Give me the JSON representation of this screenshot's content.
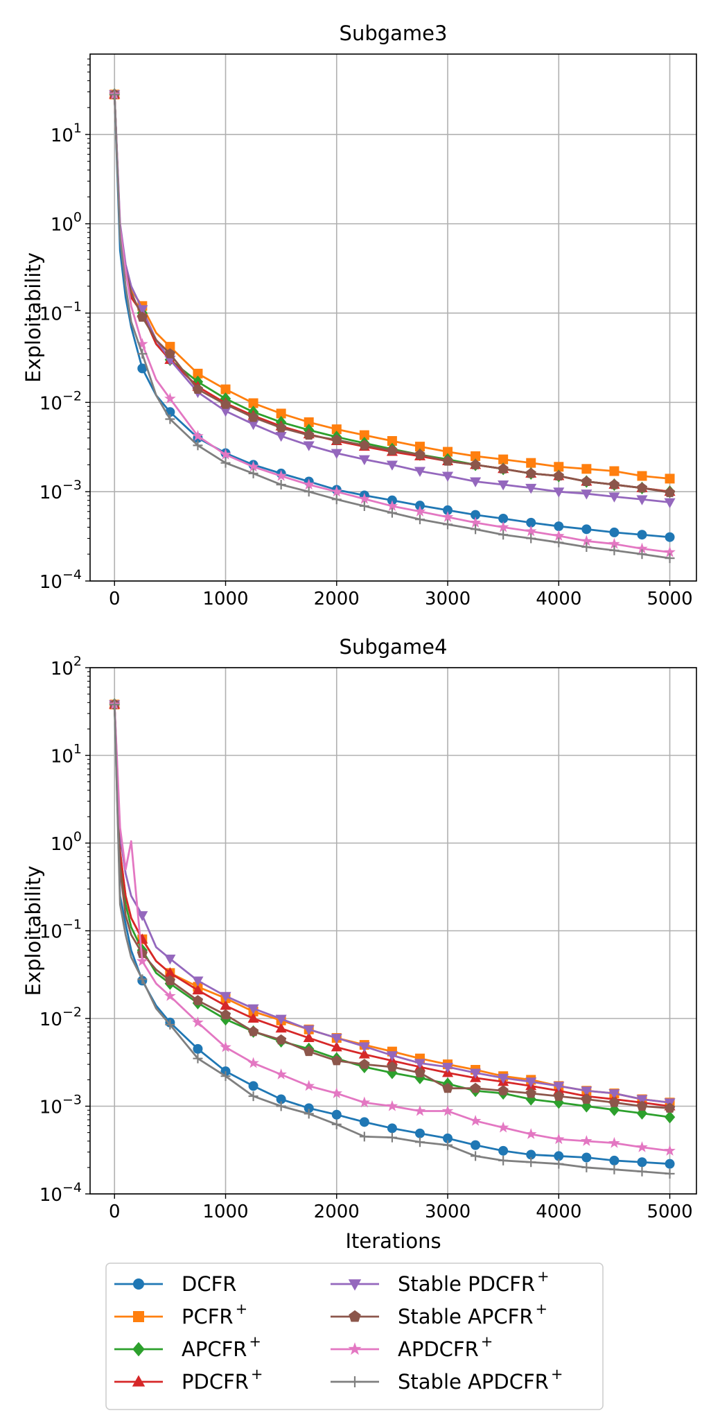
{
  "chart_data": [
    {
      "type": "line",
      "title": "Subgame3",
      "xlabel": "",
      "ylabel": "Exploitability",
      "xscale": "linear",
      "yscale": "log",
      "xlim": [
        -220,
        5240
      ],
      "ylim_exponents": [
        -4,
        1.9
      ],
      "xticks": [
        0,
        1000,
        2000,
        3000,
        4000,
        5000
      ],
      "xtick_labels": [
        "0",
        "1000",
        "2000",
        "3000",
        "4000",
        "5000"
      ],
      "ytick_exponents": [
        -4,
        -3,
        -2,
        -1,
        0,
        1
      ],
      "ytick_labels": [
        {
          "base": "10",
          "exp": "−4"
        },
        {
          "base": "10",
          "exp": "−3"
        },
        {
          "base": "10",
          "exp": "−2"
        },
        {
          "base": "10",
          "exp": "−1"
        },
        {
          "base": "10",
          "exp": "0"
        },
        {
          "base": "10",
          "exp": "1"
        }
      ],
      "grid": true,
      "x": [
        0,
        50,
        100,
        150,
        250,
        375,
        500,
        750,
        1000,
        1250,
        1500,
        1750,
        2000,
        2250,
        2500,
        2750,
        3000,
        3250,
        3500,
        3750,
        4000,
        4250,
        4500,
        4750,
        5000
      ],
      "series": [
        {
          "name": "DCFR",
          "values": [
            28,
            0.5,
            0.15,
            0.07,
            0.024,
            0.012,
            0.0078,
            0.004,
            0.0027,
            0.002,
            0.0016,
            0.0013,
            0.00105,
            0.00091,
            0.0008,
            0.0007,
            0.00062,
            0.00055,
            0.0005,
            0.00045,
            0.00041,
            0.00038,
            0.00035,
            0.00033,
            0.00031
          ]
        },
        {
          "name": "PCFR+",
          "values": [
            28,
            0.8,
            0.3,
            0.18,
            0.12,
            0.06,
            0.042,
            0.021,
            0.014,
            0.0098,
            0.0075,
            0.006,
            0.005,
            0.0043,
            0.0037,
            0.0032,
            0.0028,
            0.0025,
            0.0023,
            0.0021,
            0.0019,
            0.0018,
            0.0017,
            0.0015,
            0.0014
          ]
        },
        {
          "name": "APCFR+",
          "values": [
            28,
            0.8,
            0.28,
            0.15,
            0.1,
            0.045,
            0.03,
            0.017,
            0.011,
            0.0078,
            0.006,
            0.0049,
            0.0041,
            0.0035,
            0.003,
            0.0026,
            0.0023,
            0.002,
            0.0018,
            0.0016,
            0.0015,
            0.0013,
            0.0012,
            0.0011,
            0.001
          ]
        },
        {
          "name": "PDCFR+",
          "values": [
            28,
            0.8,
            0.28,
            0.15,
            0.1,
            0.045,
            0.03,
            0.015,
            0.0098,
            0.0071,
            0.0054,
            0.0044,
            0.0037,
            0.0032,
            0.0028,
            0.0025,
            0.0022,
            0.002,
            0.0018,
            0.0016,
            0.0015,
            0.0013,
            0.0012,
            0.0011,
            0.001
          ]
        },
        {
          "name": "Stable PDCFR+",
          "values": [
            28,
            1.0,
            0.35,
            0.2,
            0.11,
            0.05,
            0.03,
            0.013,
            0.008,
            0.0057,
            0.0042,
            0.0033,
            0.0027,
            0.0023,
            0.002,
            0.0017,
            0.0015,
            0.0013,
            0.0012,
            0.0011,
            0.001,
            0.00095,
            0.00088,
            0.00082,
            0.00076
          ]
        },
        {
          "name": "Stable APCFR+",
          "values": [
            28,
            0.8,
            0.3,
            0.17,
            0.09,
            0.05,
            0.035,
            0.014,
            0.0095,
            0.0068,
            0.0052,
            0.0043,
            0.0038,
            0.0033,
            0.0029,
            0.0026,
            0.0022,
            0.002,
            0.0018,
            0.0016,
            0.0015,
            0.0013,
            0.0012,
            0.0011,
            0.00098
          ]
        },
        {
          "name": "APDCFR+",
          "values": [
            28,
            0.9,
            0.3,
            0.12,
            0.045,
            0.018,
            0.011,
            0.0042,
            0.0026,
            0.0019,
            0.0015,
            0.0012,
            0.001,
            0.00083,
            0.00069,
            0.0006,
            0.00052,
            0.00045,
            0.0004,
            0.00036,
            0.00032,
            0.00028,
            0.00026,
            0.00023,
            0.00021
          ]
        },
        {
          "name": "Stable APDCFR+",
          "values": [
            28,
            0.7,
            0.2,
            0.08,
            0.035,
            0.012,
            0.0065,
            0.0033,
            0.0021,
            0.0016,
            0.0012,
            0.001,
            0.00082,
            0.00069,
            0.00058,
            0.00049,
            0.00043,
            0.00038,
            0.00033,
            0.0003,
            0.00027,
            0.00024,
            0.00022,
            0.0002,
            0.00018
          ]
        }
      ]
    },
    {
      "type": "line",
      "title": "Subgame4",
      "xlabel": "Iterations",
      "ylabel": "Exploitability",
      "xscale": "linear",
      "yscale": "log",
      "xlim": [
        -220,
        5240
      ],
      "ylim_exponents": [
        -4,
        2
      ],
      "xticks": [
        0,
        1000,
        2000,
        3000,
        4000,
        5000
      ],
      "xtick_labels": [
        "0",
        "1000",
        "2000",
        "3000",
        "4000",
        "5000"
      ],
      "ytick_exponents": [
        -4,
        -3,
        -2,
        -1,
        0,
        1,
        2
      ],
      "ytick_labels": [
        {
          "base": "10",
          "exp": "−4"
        },
        {
          "base": "10",
          "exp": "−3"
        },
        {
          "base": "10",
          "exp": "−2"
        },
        {
          "base": "10",
          "exp": "−1"
        },
        {
          "base": "10",
          "exp": "0"
        },
        {
          "base": "10",
          "exp": "1"
        },
        {
          "base": "10",
          "exp": "2"
        }
      ],
      "grid": true,
      "x": [
        0,
        50,
        100,
        150,
        250,
        375,
        500,
        750,
        1000,
        1250,
        1500,
        1750,
        2000,
        2250,
        2500,
        2750,
        3000,
        3250,
        3500,
        3750,
        4000,
        4250,
        4500,
        4750,
        5000
      ],
      "series": [
        {
          "name": "DCFR",
          "values": [
            38,
            0.25,
            0.12,
            0.06,
            0.027,
            0.014,
            0.009,
            0.0045,
            0.0025,
            0.0017,
            0.0012,
            0.00095,
            0.0008,
            0.00066,
            0.00056,
            0.00049,
            0.00043,
            0.00036,
            0.00031,
            0.00028,
            0.00027,
            0.00026,
            0.00024,
            0.00023,
            0.00022
          ]
        },
        {
          "name": "PCFR+",
          "values": [
            38,
            0.8,
            0.25,
            0.14,
            0.08,
            0.045,
            0.033,
            0.023,
            0.017,
            0.012,
            0.0095,
            0.0075,
            0.006,
            0.005,
            0.0042,
            0.0035,
            0.003,
            0.0026,
            0.0022,
            0.002,
            0.0017,
            0.0015,
            0.0014,
            0.0012,
            0.0011
          ]
        },
        {
          "name": "APCFR+",
          "values": [
            38,
            0.6,
            0.2,
            0.11,
            0.06,
            0.033,
            0.025,
            0.015,
            0.0098,
            0.0071,
            0.0055,
            0.0045,
            0.0035,
            0.0028,
            0.0024,
            0.0021,
            0.0018,
            0.0015,
            0.0014,
            0.0012,
            0.0011,
            0.001,
            0.00091,
            0.00083,
            0.00075
          ]
        },
        {
          "name": "PDCFR+",
          "values": [
            38,
            0.8,
            0.25,
            0.14,
            0.08,
            0.045,
            0.033,
            0.021,
            0.014,
            0.01,
            0.0077,
            0.006,
            0.0047,
            0.0039,
            0.0033,
            0.0028,
            0.0024,
            0.0021,
            0.0019,
            0.0017,
            0.0015,
            0.0013,
            0.0012,
            0.0011,
            0.001
          ]
        },
        {
          "name": "Stable PDCFR+",
          "values": [
            38,
            1.2,
            0.45,
            0.25,
            0.15,
            0.065,
            0.048,
            0.027,
            0.018,
            0.013,
            0.0099,
            0.0075,
            0.006,
            0.0048,
            0.0038,
            0.0031,
            0.0028,
            0.0024,
            0.0021,
            0.0019,
            0.0017,
            0.0015,
            0.0014,
            0.0012,
            0.0011
          ]
        },
        {
          "name": "Stable APCFR+",
          "values": [
            38,
            0.5,
            0.15,
            0.09,
            0.055,
            0.036,
            0.027,
            0.016,
            0.011,
            0.0071,
            0.0057,
            0.0042,
            0.0033,
            0.003,
            0.0028,
            0.0024,
            0.0016,
            0.0016,
            0.0015,
            0.0014,
            0.0013,
            0.0012,
            0.0011,
            0.001,
            0.00095
          ]
        },
        {
          "name": "APDCFR+",
          "values": [
            38,
            1.5,
            0.5,
            1.05,
            0.045,
            0.025,
            0.018,
            0.009,
            0.0047,
            0.0031,
            0.0023,
            0.0017,
            0.0014,
            0.0011,
            0.001,
            0.00088,
            0.00088,
            0.00068,
            0.00057,
            0.00048,
            0.00042,
            0.0004,
            0.00038,
            0.00034,
            0.00031
          ]
        },
        {
          "name": "Stable APDCFR+",
          "values": [
            38,
            0.2,
            0.09,
            0.05,
            0.028,
            0.013,
            0.0085,
            0.0035,
            0.0022,
            0.0013,
            0.001,
            0.00082,
            0.00062,
            0.00045,
            0.00044,
            0.00039,
            0.00036,
            0.00027,
            0.00024,
            0.00023,
            0.00022,
            0.0002,
            0.00019,
            0.00018,
            0.00017
          ]
        }
      ]
    }
  ],
  "legend": {
    "location": "bottom-center",
    "ncols": 2,
    "entries": [
      {
        "label": "DCFR",
        "sup": "",
        "color": "#1f77b4",
        "marker": "circle"
      },
      {
        "label": "PCFR",
        "sup": "+",
        "color": "#ff7f0e",
        "marker": "square"
      },
      {
        "label": "APCFR",
        "sup": "+",
        "color": "#2ca02c",
        "marker": "diamond"
      },
      {
        "label": "PDCFR",
        "sup": "+",
        "color": "#d62728",
        "marker": "triangle-up"
      },
      {
        "label": "Stable PDCFR",
        "sup": "+",
        "color": "#9467bd",
        "marker": "triangle-down"
      },
      {
        "label": "Stable APCFR",
        "sup": "+",
        "color": "#8c564b",
        "marker": "pentagon"
      },
      {
        "label": "APDCFR",
        "sup": "+",
        "color": "#e377c2",
        "marker": "star"
      },
      {
        "label": "Stable APDCFR",
        "sup": "+",
        "color": "#7f7f7f",
        "marker": "plus"
      }
    ]
  }
}
